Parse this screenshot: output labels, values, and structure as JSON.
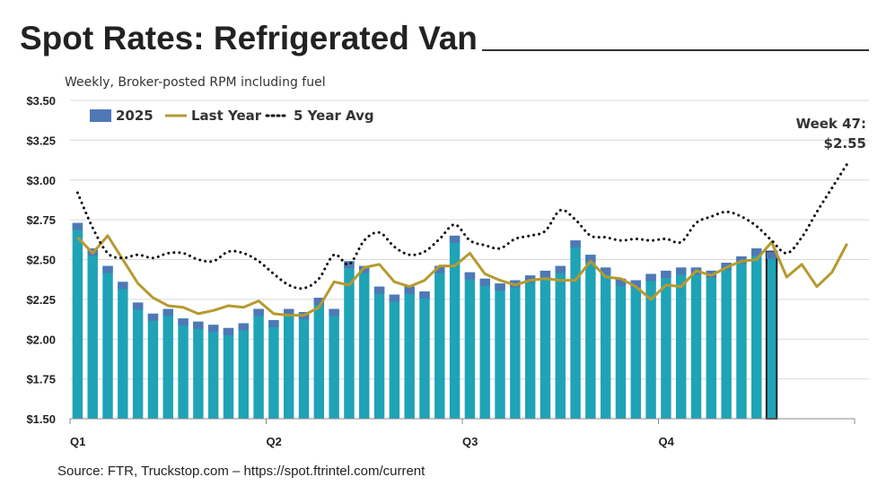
{
  "title": "Spot Rates: Refrigerated Van",
  "subtitle": "Weekly, Broker-posted RPM including fuel",
  "source": "Source: FTR, Truckstop.com – https://spot.ftrintel.com/current",
  "chart_data": {
    "type": "bar",
    "title": "Spot Rates: Refrigerated Van",
    "subtitle": "Weekly, Broker-posted RPM including fuel",
    "xlabel": "",
    "ylabel": "",
    "ylim": [
      1.5,
      3.5
    ],
    "yticks": [
      "$1.50",
      "$1.75",
      "$2.00",
      "$2.25",
      "$2.50",
      "$2.75",
      "$3.00",
      "$3.25",
      "$3.50"
    ],
    "ytick_values": [
      1.5,
      1.75,
      2.0,
      2.25,
      2.5,
      2.75,
      3.0,
      3.25,
      3.5
    ],
    "xticks": [
      "Q1",
      "Q2",
      "Q3",
      "Q4"
    ],
    "grid": true,
    "legend_placement": "top-left",
    "weeks_total": 52,
    "colors": {
      "bars": "#1fa3b6",
      "bar_cap": "#4e79b6",
      "last_year": "#b59a2e",
      "last_year_overlap": "#6fb52e",
      "five_year": "#111111"
    },
    "series": [
      {
        "name": "2025",
        "type": "bar",
        "values": [
          2.73,
          2.57,
          2.46,
          2.36,
          2.23,
          2.16,
          2.19,
          2.13,
          2.11,
          2.09,
          2.07,
          2.1,
          2.19,
          2.12,
          2.19,
          2.17,
          2.26,
          2.19,
          2.49,
          2.46,
          2.33,
          2.28,
          2.33,
          2.3,
          2.46,
          2.65,
          2.42,
          2.38,
          2.35,
          2.37,
          2.4,
          2.43,
          2.46,
          2.62,
          2.53,
          2.45,
          2.38,
          2.37,
          2.41,
          2.43,
          2.45,
          2.45,
          2.43,
          2.48,
          2.52,
          2.57,
          2.55
        ]
      },
      {
        "name": "Last Year",
        "type": "line",
        "values": [
          2.64,
          2.54,
          2.65,
          2.5,
          2.35,
          2.26,
          2.21,
          2.2,
          2.16,
          2.18,
          2.21,
          2.2,
          2.24,
          2.16,
          2.15,
          2.15,
          2.2,
          2.36,
          2.34,
          2.45,
          2.47,
          2.36,
          2.33,
          2.37,
          2.46,
          2.46,
          2.54,
          2.41,
          2.37,
          2.34,
          2.37,
          2.38,
          2.37,
          2.37,
          2.49,
          2.39,
          2.38,
          2.33,
          2.25,
          2.34,
          2.33,
          2.43,
          2.4,
          2.45,
          2.49,
          2.5,
          2.61,
          2.39,
          2.47,
          2.33,
          2.42,
          2.6
        ]
      },
      {
        "name": "5 Year Avg",
        "type": "line",
        "style": "dotted",
        "values": [
          2.92,
          2.7,
          2.54,
          2.51,
          2.53,
          2.51,
          2.54,
          2.54,
          2.5,
          2.49,
          2.55,
          2.54,
          2.49,
          2.41,
          2.34,
          2.32,
          2.38,
          2.53,
          2.47,
          2.62,
          2.67,
          2.58,
          2.53,
          2.55,
          2.63,
          2.72,
          2.62,
          2.59,
          2.57,
          2.63,
          2.65,
          2.68,
          2.81,
          2.75,
          2.65,
          2.64,
          2.62,
          2.63,
          2.62,
          2.63,
          2.61,
          2.73,
          2.77,
          2.8,
          2.77,
          2.71,
          2.62,
          2.54,
          2.64,
          2.8,
          2.95,
          3.1
        ]
      }
    ],
    "annotation": {
      "line1": "Week 47:",
      "line2": "$2.55"
    }
  }
}
